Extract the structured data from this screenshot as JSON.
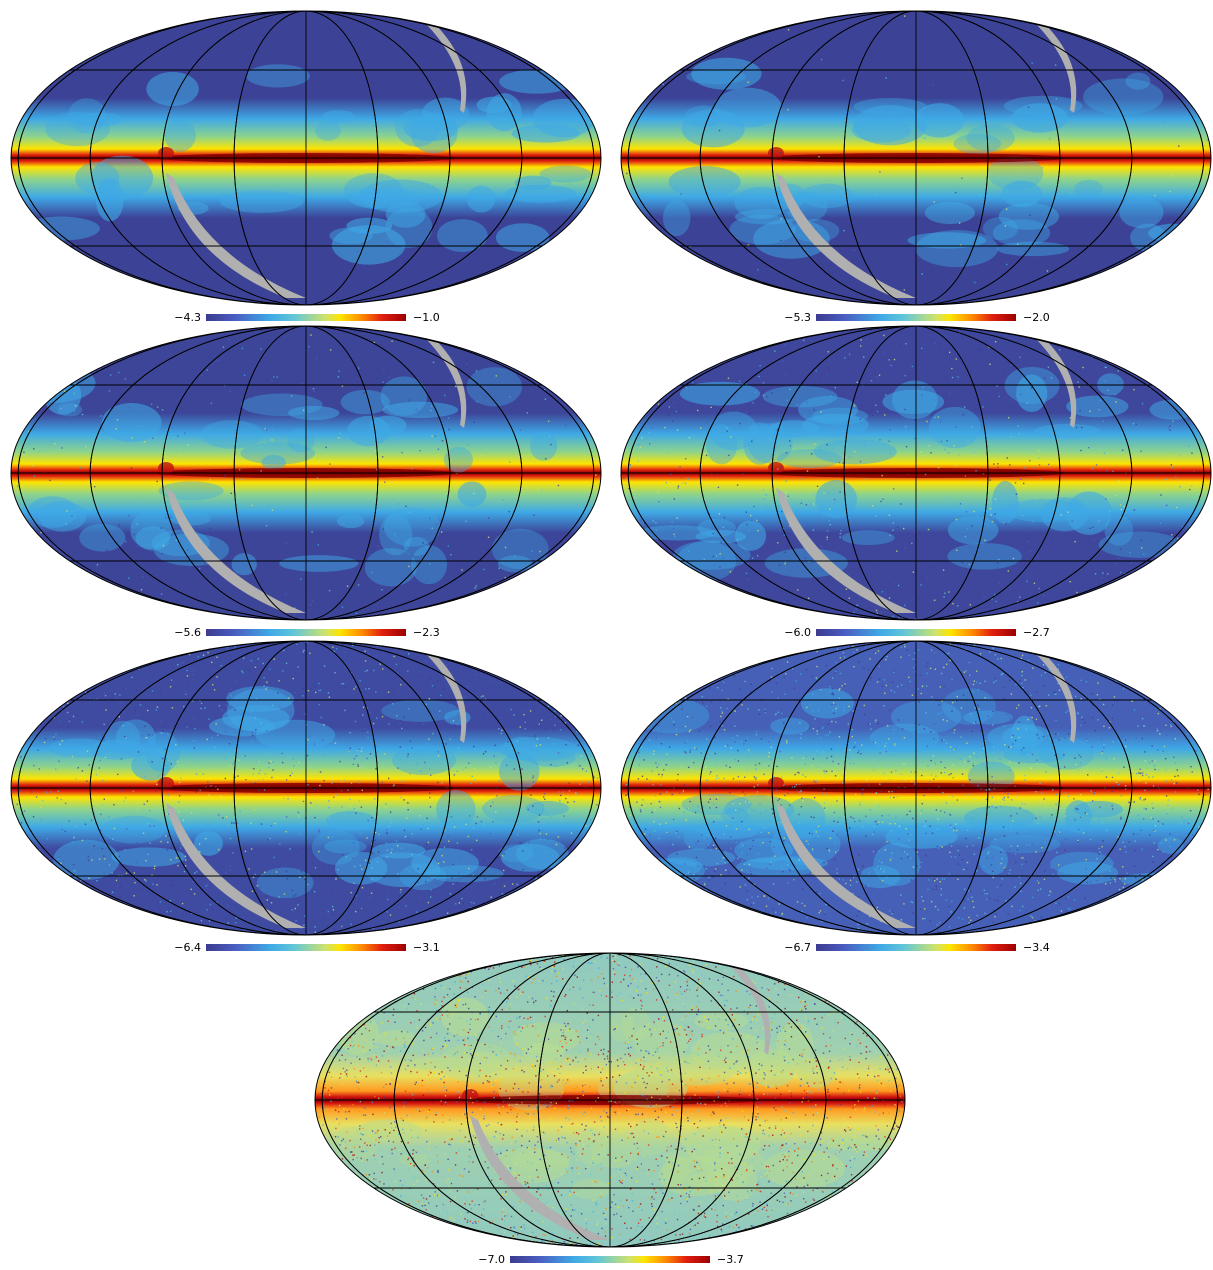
{
  "panels": [
    {
      "id": "p1",
      "scale_min": "−4.3",
      "scale_max": "−1.0",
      "noise_level": 0.0,
      "background": "#3c4396"
    },
    {
      "id": "p2",
      "scale_min": "−5.3",
      "scale_max": "−2.0",
      "noise_level": 0.02,
      "background": "#3c4396"
    },
    {
      "id": "p3",
      "scale_min": "−5.6",
      "scale_max": "−2.3",
      "noise_level": 0.08,
      "background": "#3d4598"
    },
    {
      "id": "p4",
      "scale_min": "−6.0",
      "scale_max": "−2.7",
      "noise_level": 0.18,
      "background": "#3e479b"
    },
    {
      "id": "p5",
      "scale_min": "−6.4",
      "scale_max": "−3.1",
      "noise_level": 0.35,
      "background": "#3f4ba0"
    },
    {
      "id": "p6",
      "scale_min": "−6.7",
      "scale_max": "−3.4",
      "noise_level": 0.55,
      "background": "#4560b6"
    },
    {
      "id": "p7",
      "scale_min": "−7.0",
      "scale_max": "−3.7",
      "noise_level": 0.8,
      "background": "#8fc9c0"
    }
  ],
  "colormap": [
    "#3c3c8f",
    "#4a5cc0",
    "#3fa9e6",
    "#62c6d8",
    "#cfe26a",
    "#ffe500",
    "#ff8a00",
    "#e02010",
    "#9c0000"
  ],
  "mask_color": "#b0b0b0",
  "graticule_color": "#000000"
}
